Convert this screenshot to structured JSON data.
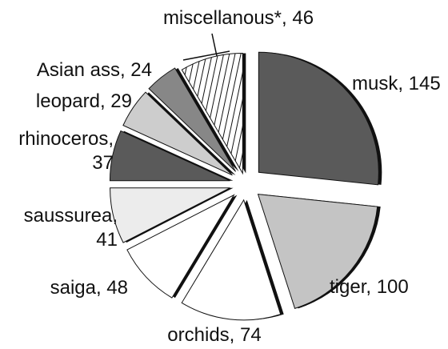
{
  "chart_data": {
    "type": "pie",
    "exploded": true,
    "slices": [
      {
        "name": "musk",
        "value": 145,
        "label": [
          "musk, 145"
        ],
        "color": "#5a5a5a"
      },
      {
        "name": "tiger",
        "value": 100,
        "label": [
          "tiger, 100"
        ],
        "color": "#c4c4c4"
      },
      {
        "name": "orchids",
        "value": 74,
        "label": [
          "orchids, 74"
        ],
        "color": "#ffffff"
      },
      {
        "name": "saiga",
        "value": 48,
        "label": [
          "saiga, 48"
        ],
        "color": "#ffffff"
      },
      {
        "name": "saussurea",
        "value": 41,
        "label": [
          "saussurea,",
          "41"
        ],
        "color": "#ececec"
      },
      {
        "name": "rhinoceros",
        "value": 37,
        "label": [
          "rhinoceros,",
          "37"
        ],
        "color": "#5a5a5a"
      },
      {
        "name": "leopard",
        "value": 29,
        "label": [
          "leopard, 29"
        ],
        "color": "#cdcdcd"
      },
      {
        "name": "Asian ass",
        "value": 24,
        "label": [
          "Asian ass, 24"
        ],
        "color": "#878787"
      },
      {
        "name": "miscellanous*",
        "value": 46,
        "label": [
          "miscellanous*, 46"
        ],
        "color": "#ffffff"
      }
    ]
  }
}
